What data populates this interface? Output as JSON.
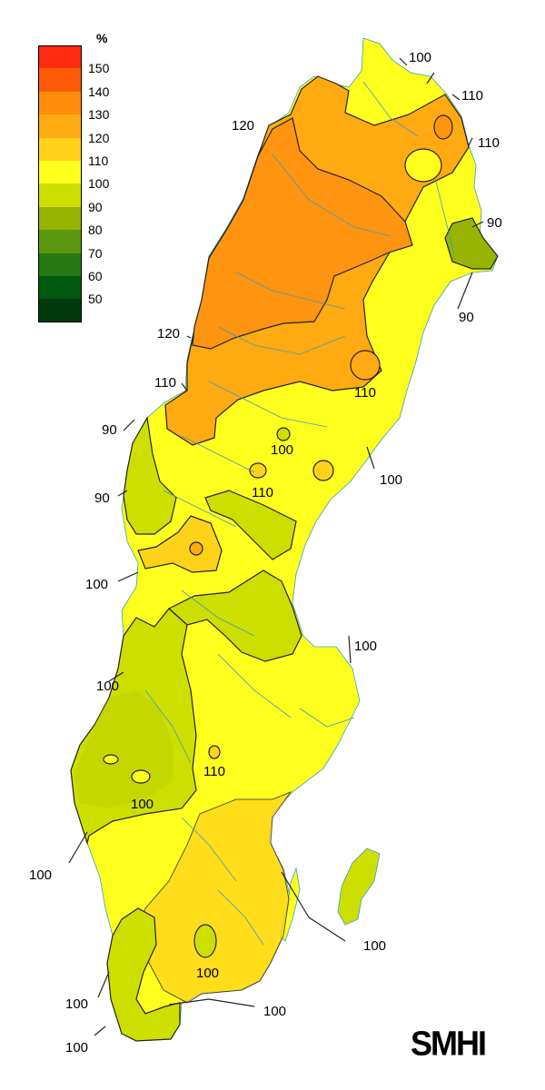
{
  "legend": {
    "unit": "%",
    "items": [
      {
        "label": "150",
        "color": "#ff2a12"
      },
      {
        "label": "140",
        "color": "#ff5a0a"
      },
      {
        "label": "130",
        "color": "#ff8c0a"
      },
      {
        "label": "120",
        "color": "#ffaa10"
      },
      {
        "label": "110",
        "color": "#ffd21a"
      },
      {
        "label": "100",
        "color": "#ffff1e"
      },
      {
        "label": "90",
        "color": "#cddf00"
      },
      {
        "label": "80",
        "color": "#96b400"
      },
      {
        "label": "70",
        "color": "#5a9610"
      },
      {
        "label": "60",
        "color": "#287814"
      },
      {
        "label": "50",
        "color": "#005a10"
      },
      {
        "label": "",
        "color": "#003a0a"
      }
    ]
  },
  "isolines": [
    {
      "id": "n100",
      "text": "100"
    },
    {
      "id": "n110a",
      "text": "110"
    },
    {
      "id": "n110b",
      "text": "110"
    },
    {
      "id": "n120",
      "text": "120"
    },
    {
      "id": "e90a",
      "text": "90"
    },
    {
      "id": "e90b",
      "text": "90"
    },
    {
      "id": "w120",
      "text": "120"
    },
    {
      "id": "w110",
      "text": "110"
    },
    {
      "id": "c110a",
      "text": "110"
    },
    {
      "id": "c100a",
      "text": "100"
    },
    {
      "id": "e100",
      "text": "100"
    },
    {
      "id": "w90a",
      "text": "90"
    },
    {
      "id": "w90b",
      "text": "90"
    },
    {
      "id": "c110b",
      "text": "110"
    },
    {
      "id": "w100a",
      "text": "100"
    },
    {
      "id": "e100b",
      "text": "100"
    },
    {
      "id": "w100b",
      "text": "100"
    },
    {
      "id": "c110c",
      "text": "110"
    },
    {
      "id": "c100b",
      "text": "100"
    },
    {
      "id": "w100c",
      "text": "100"
    },
    {
      "id": "s100a",
      "text": "100"
    },
    {
      "id": "s100b",
      "text": "100"
    },
    {
      "id": "s100c",
      "text": "100"
    },
    {
      "id": "s100d",
      "text": "100"
    },
    {
      "id": "s100e",
      "text": "100"
    }
  ],
  "logo": "SMHI"
}
